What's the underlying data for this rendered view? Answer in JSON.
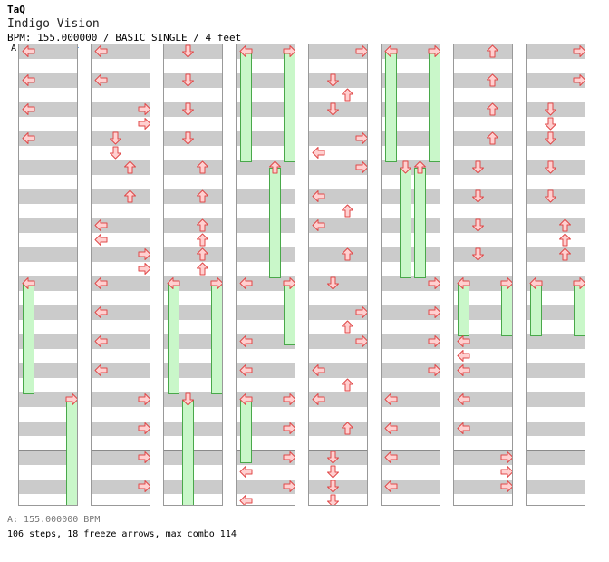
{
  "header": {
    "artist": "TaQ",
    "title": "Indigo Vision",
    "meta": "BPM: 155.000000 / BASIC SINGLE / 4 feet",
    "marker": "A"
  },
  "footer": {
    "bpm_line": "A: 155.000000 BPM",
    "stats_line": "106 steps, 18 freeze arrows, max combo 114"
  },
  "colors": {
    "band": "#cbcbcb",
    "arrow_fill": "#ffd0d0",
    "arrow_stroke": "#e04848",
    "freeze_fill": "#c9f7c9",
    "freeze_stroke": "#49a84a",
    "bpm_marker": "#6aa2e8"
  },
  "chart": {
    "columns": 8,
    "measures_per_column": 8,
    "lanes": [
      "left",
      "down",
      "up",
      "right"
    ],
    "notes": [
      [
        0,
        0,
        "left"
      ],
      [
        2,
        0,
        "right"
      ],
      [
        4,
        0,
        "left"
      ],
      [
        4,
        0,
        "right"
      ],
      [
        4,
        0,
        "left",
        4
      ],
      [
        4,
        0,
        "right",
        4
      ],
      [
        6,
        0,
        "right"
      ],
      [
        4,
        3,
        "down"
      ],
      [
        4,
        3,
        "up"
      ],
      [
        8,
        0,
        "left"
      ],
      [
        8,
        1,
        "right",
        4
      ],
      [
        0,
        1,
        "left"
      ],
      [
        0,
        1,
        "left",
        4
      ],
      [
        2,
        1,
        "down"
      ],
      [
        4,
        1,
        "down"
      ],
      [
        4,
        1,
        "right"
      ],
      [
        6,
        1,
        "down"
      ],
      [
        6,
        1,
        "right"
      ],
      [
        4,
        2,
        "down"
      ],
      [
        4,
        2,
        "up"
      ],
      [
        4,
        3,
        "down"
      ],
      [
        8,
        1,
        "up"
      ],
      [
        8,
        1,
        "right"
      ],
      [
        0,
        2,
        "down"
      ],
      [
        2,
        2,
        "down"
      ],
      [
        4,
        2,
        "down"
      ],
      [
        6,
        2,
        "up"
      ],
      [
        6,
        2,
        "up"
      ],
      [
        4,
        4,
        "up"
      ],
      [
        4,
        4,
        "up"
      ],
      [
        4,
        5,
        "down"
      ],
      [
        4,
        5,
        "right"
      ],
      [
        4,
        6,
        "right"
      ],
      [
        8,
        2,
        "right"
      ],
      [
        8,
        3,
        "up"
      ],
      [
        8,
        4,
        "left"
      ],
      [
        8,
        4,
        "left",
        4
      ],
      [
        8,
        4,
        "right",
        4
      ],
      [
        8,
        6,
        "up"
      ],
      [
        8,
        6,
        "right"
      ],
      [
        0,
        3,
        "left"
      ],
      [
        0,
        3,
        "left",
        16
      ],
      [
        0,
        3,
        "right"
      ],
      [
        0,
        3,
        "right",
        16
      ],
      [
        6,
        3,
        "up"
      ],
      [
        6,
        3,
        "up",
        20
      ],
      [
        8,
        4,
        "left"
      ],
      [
        8,
        4,
        "right"
      ],
      [
        8,
        4,
        "right",
        4
      ],
      [
        10,
        4,
        "left"
      ],
      [
        12,
        4,
        "left"
      ],
      [
        14,
        4,
        "left"
      ],
      [
        16,
        4,
        "left"
      ],
      [
        10,
        4,
        "right"
      ],
      [
        12,
        4,
        "right"
      ],
      [
        14,
        4,
        "right"
      ],
      [
        16,
        4,
        "right"
      ]
    ]
  }
}
